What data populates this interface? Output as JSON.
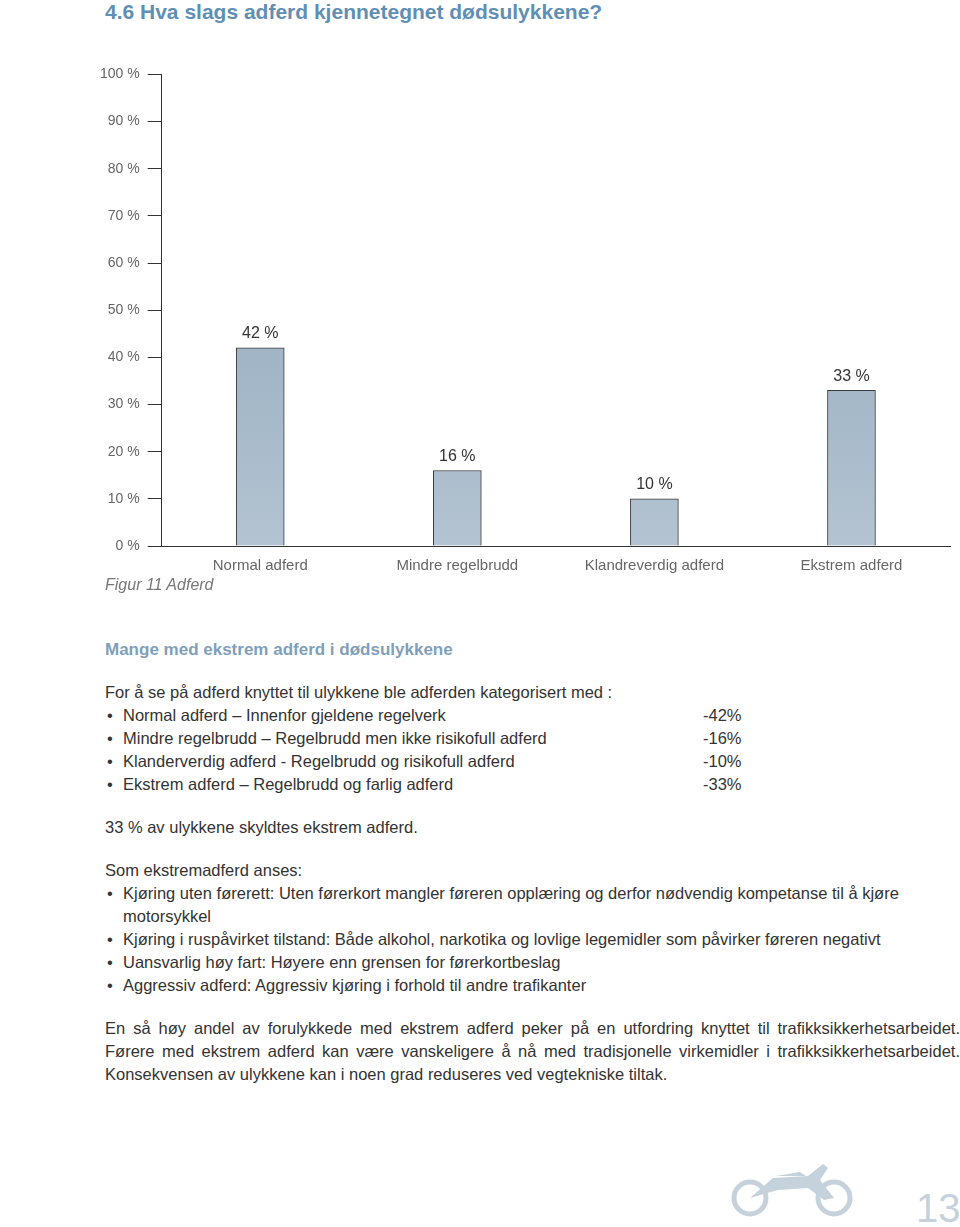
{
  "heading": "4.6 Hva slags adferd kjennetegnet dødsulykkene?",
  "chart_data": {
    "type": "bar",
    "categories": [
      "Normal adferd",
      "Mindre regelbrudd",
      "Klandreverdig adferd",
      "Ekstrem adferd"
    ],
    "values": [
      42,
      16,
      10,
      33
    ],
    "value_labels": [
      "42 %",
      "16 %",
      "10 %",
      "33 %"
    ],
    "data_labels": true,
    "color": "#86a0b6",
    "ylim": [
      0,
      100
    ],
    "yticks": [
      {
        "value": 0,
        "label": "0 %"
      },
      {
        "value": 10,
        "label": "10 %"
      },
      {
        "value": 20,
        "label": "20 %"
      },
      {
        "value": 30,
        "label": "30 %"
      },
      {
        "value": 40,
        "label": "40 %"
      },
      {
        "value": 50,
        "label": "50 %"
      },
      {
        "value": 60,
        "label": "60 %"
      },
      {
        "value": 70,
        "label": "70 %"
      },
      {
        "value": 80,
        "label": "80 %"
      },
      {
        "value": 90,
        "label": "90 %"
      },
      {
        "value": 100,
        "label": "100 %"
      }
    ],
    "grid": false
  },
  "caption": "Figur 11 Adferd",
  "subheading": "Mange med ekstrem adferd i dødsulykkene",
  "intro": "For å se på adferd knyttet til ulykkene ble adferden kategorisert med :",
  "categories_list": [
    {
      "text": "Normal adferd – Innenfor gjeldene regelverk",
      "value": "-42%"
    },
    {
      "text": "Mindre regelbrudd – Regelbrudd men ikke risikofull adferd",
      "value": "-16%"
    },
    {
      "text": "Klanderverdig adferd - Regelbrudd og risikofull adferd",
      "value": "-10%"
    },
    {
      "text": "Ekstrem adferd – Regelbrudd og farlig adferd",
      "value": "-33%"
    }
  ],
  "summary": "33 % av ulykkene skyldtes ekstrem adferd.",
  "extreme_intro": "Som ekstremadferd anses:",
  "extreme_list": [
    "Kjøring uten førerett: Uten førerkort mangler føreren opplæring og derfor nødvendig kompetanse til å kjøre motorsykkel",
    "Kjøring i ruspåvirket tilstand: Både alkohol, narkotika og lovlige legemidler som påvirker føreren negativt",
    "Uansvarlig høy fart: Høyere enn grensen for førerkortbeslag",
    "Aggressiv adferd: Aggressiv kjøring i forhold til andre trafikanter"
  ],
  "paragraph": "En så høy andel av forulykkede med ekstrem adferd peker på en utfordring knyttet til trafikksikkerhetsarbeidet. Førere med ekstrem adferd kan være vanskeligere å nå med tradisjonelle virkemidler i trafikksikkerhetsarbeidet. Konsekvensen av ulykkene kan i noen grad reduseres ved vegtekniske tiltak.",
  "page_number": "13"
}
